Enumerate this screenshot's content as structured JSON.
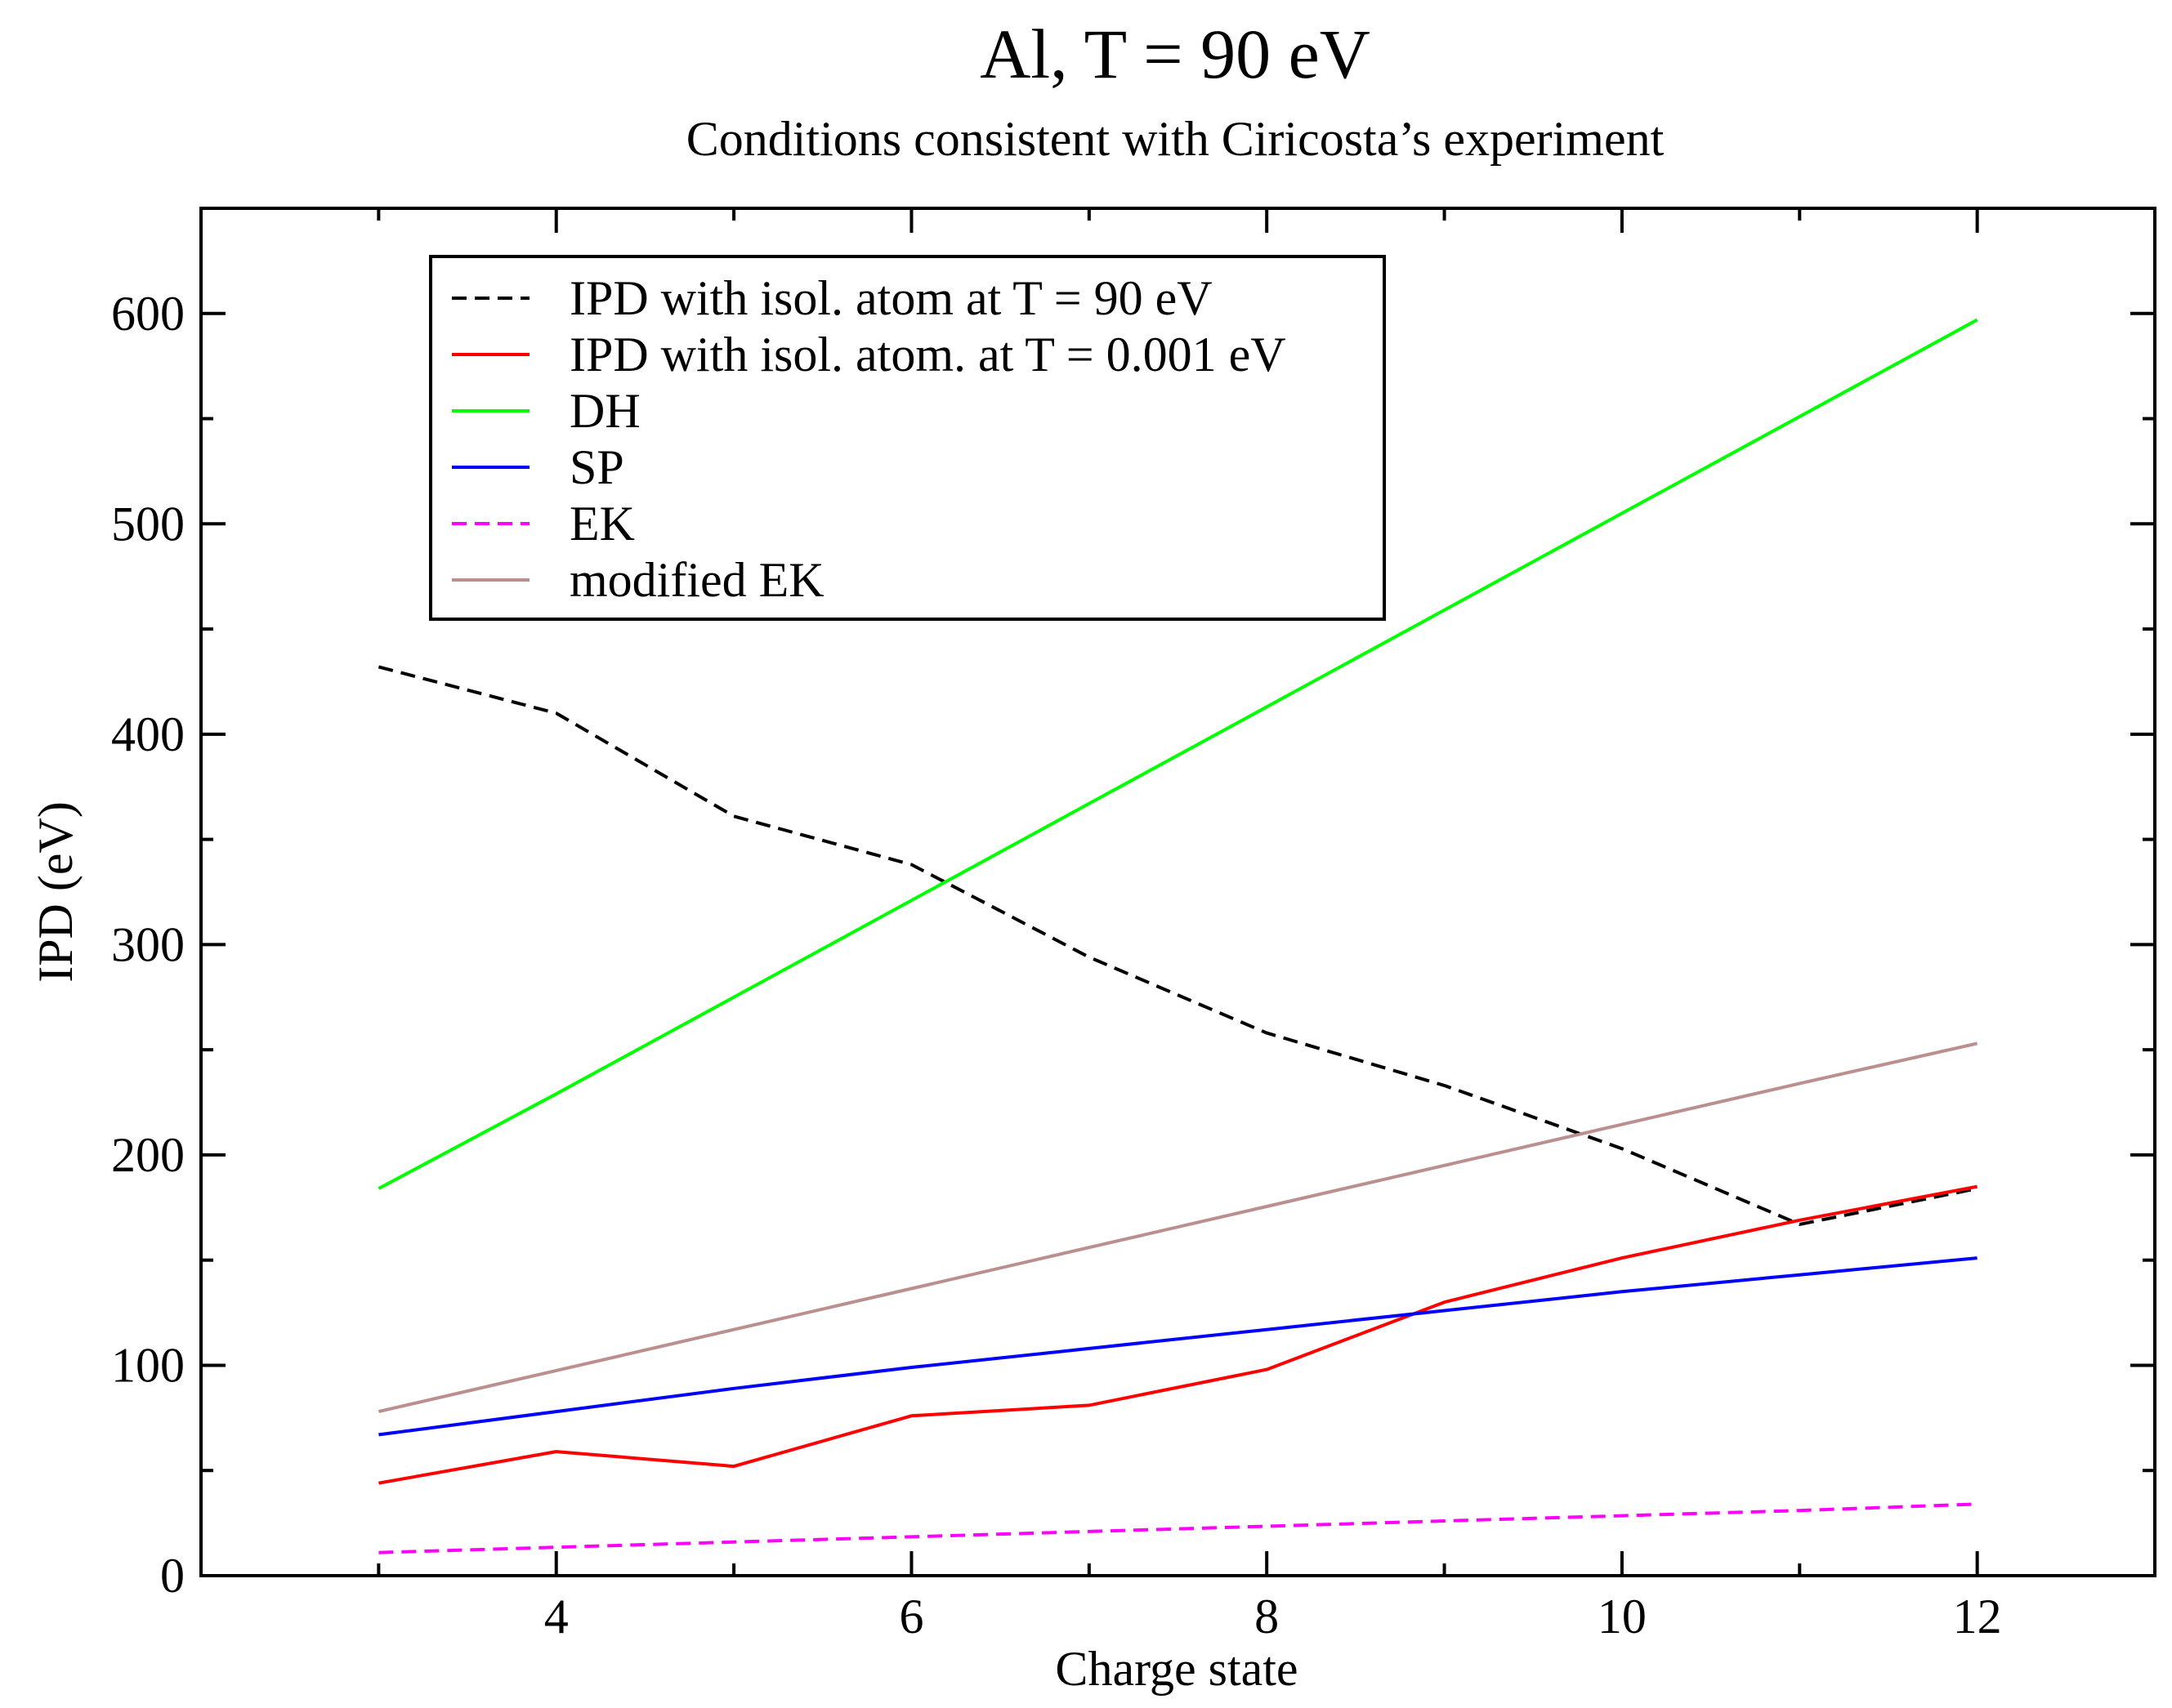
{
  "chart_data": {
    "type": "line",
    "title": "Al, T = 90 eV",
    "subtitle": "Conditions consistent with Ciricosta’s experiment",
    "xlabel": "Charge state",
    "ylabel": "IPD (eV)",
    "xlim": [
      2,
      13
    ],
    "ylim": [
      0,
      650
    ],
    "xticks": [
      4,
      6,
      8,
      10,
      12
    ],
    "xtick_labels": [
      "4",
      "6",
      "8",
      "10",
      "12"
    ],
    "yticks": [
      0,
      100,
      200,
      300,
      400,
      500,
      600
    ],
    "ytick_labels": [
      "0",
      "100",
      "200",
      "300",
      "400",
      "500",
      "600"
    ],
    "grid": false,
    "legend_position": "top-left",
    "x": [
      3,
      4,
      5,
      6,
      7,
      8,
      9,
      10,
      11,
      12
    ],
    "series": [
      {
        "name": "IPD with isol. atom at T = 90 eV",
        "color": "#000000",
        "dash": "dashed",
        "values": [
          432,
          410,
          361,
          338,
          294,
          258,
          233,
          203,
          167,
          184
        ]
      },
      {
        "name": "IPD with isol. atom. at T = 0.001 eV",
        "color": "#ff0000",
        "dash": "solid",
        "values": [
          44,
          59,
          52,
          76,
          81,
          98,
          130,
          151,
          169,
          185
        ]
      },
      {
        "name": "DH",
        "color": "#00ff00",
        "dash": "solid",
        "values": [
          184,
          229,
          275,
          321,
          367,
          413,
          459,
          505,
          551,
          597
        ]
      },
      {
        "name": "SP",
        "color": "#0000ff",
        "dash": "solid",
        "values": [
          67,
          78,
          89,
          99,
          108,
          117,
          126,
          135,
          143,
          151
        ]
      },
      {
        "name": "EK",
        "color": "#ff00ff",
        "dash": "dashed",
        "values": [
          11,
          13.5,
          16,
          18.5,
          21,
          23.5,
          26,
          28.5,
          31,
          34
        ]
      },
      {
        "name": "modified EK",
        "color": "#bc8f8f",
        "dash": "solid",
        "values": [
          78,
          97.5,
          117,
          136.5,
          156,
          175.5,
          195,
          214.5,
          234,
          253
        ]
      }
    ]
  }
}
